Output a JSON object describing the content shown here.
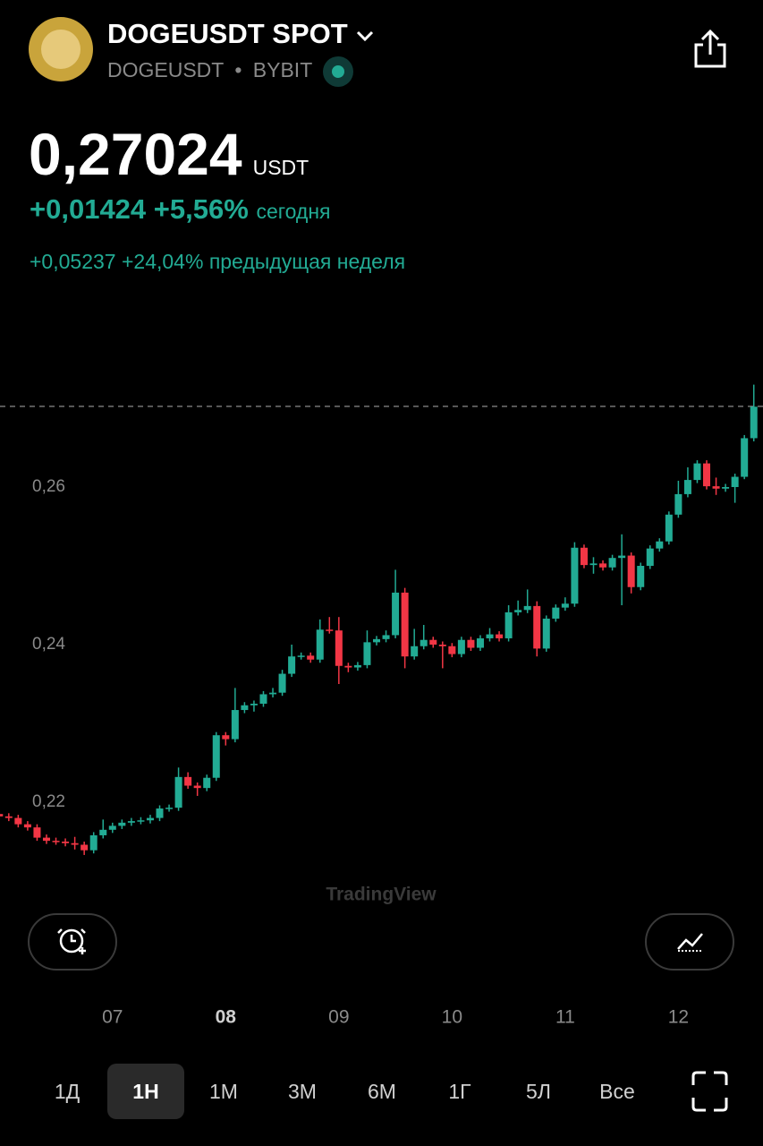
{
  "header": {
    "title": "DOGEUSDT SPOT",
    "symbol": "DOGEUSDT",
    "separator": "•",
    "exchange": "BYBIT",
    "price": "0,27024",
    "currency": "USDT",
    "change_today": "+0,01424",
    "change_today_pct": "+5,56%",
    "today_label": "сегодня",
    "change_week": "+0,05237",
    "change_week_pct": "+24,04%",
    "week_label": "предыдущая неделя"
  },
  "watermark": "TradingView",
  "ranges": [
    "1Д",
    "1Н",
    "1М",
    "3М",
    "6М",
    "1Г",
    "5Л",
    "Все"
  ],
  "selected_range": 1,
  "chart_data": {
    "type": "candlestick",
    "up_color": "#22ab94",
    "down_color": "#f23645",
    "grid": false,
    "ylim": [
      0.21,
      0.285
    ],
    "yticks": [
      {
        "value": 0.22,
        "label": "0,22"
      },
      {
        "value": 0.24,
        "label": "0,24"
      },
      {
        "value": 0.26,
        "label": "0,26"
      }
    ],
    "last_price": 0.27024,
    "categories": [
      null,
      null,
      null,
      null,
      null,
      null,
      null,
      null,
      null,
      null,
      null,
      null,
      "07",
      null,
      null,
      null,
      null,
      null,
      null,
      null,
      null,
      null,
      null,
      null,
      "08",
      null,
      null,
      null,
      null,
      null,
      null,
      null,
      null,
      null,
      null,
      null,
      "09",
      null,
      null,
      null,
      null,
      null,
      null,
      null,
      null,
      null,
      null,
      null,
      "10",
      null,
      null,
      null,
      null,
      null,
      null,
      null,
      null,
      null,
      null,
      null,
      "11",
      null,
      null,
      null,
      null,
      null,
      null,
      null,
      null,
      null,
      null,
      null,
      "12",
      null,
      null,
      null,
      null,
      null,
      null,
      null,
      null
    ],
    "open": [
      0.2185,
      0.2182,
      0.218,
      0.2172,
      0.2168,
      0.2155,
      0.2151,
      0.215,
      0.2148,
      0.2146,
      0.2139,
      0.2158,
      0.2165,
      0.217,
      0.2174,
      0.2176,
      0.2177,
      0.218,
      0.2192,
      0.2193,
      0.2232,
      0.2221,
      0.2218,
      0.2231,
      0.2285,
      0.228,
      0.2317,
      0.2323,
      0.2325,
      0.2337,
      0.2339,
      0.2363,
      0.2385,
      0.2386,
      0.2381,
      0.2419,
      0.2418,
      0.2373,
      0.2371,
      0.2374,
      0.2403,
      0.2407,
      0.2412,
      0.2466,
      0.2385,
      0.2398,
      0.2406,
      0.24,
      0.2398,
      0.2388,
      0.2406,
      0.2396,
      0.2408,
      0.2413,
      0.2408,
      0.2441,
      0.2444,
      0.2449,
      0.2395,
      0.2433,
      0.2447,
      0.2452,
      0.2523,
      0.2501,
      0.2503,
      0.2498,
      0.251,
      0.2513,
      0.2473,
      0.25,
      0.2522,
      0.2531,
      0.2565,
      0.2591,
      0.2609,
      0.263,
      0.2601,
      0.2598,
      0.26,
      0.2613,
      0.2662
    ],
    "high": [
      0.2189,
      0.2186,
      0.2184,
      0.2176,
      0.2172,
      0.2159,
      0.2155,
      0.2154,
      0.2156,
      0.215,
      0.2162,
      0.2178,
      0.2174,
      0.2178,
      0.218,
      0.2181,
      0.2184,
      0.2196,
      0.2197,
      0.2244,
      0.2238,
      0.2225,
      0.2235,
      0.2289,
      0.2289,
      0.2345,
      0.2327,
      0.2329,
      0.2341,
      0.2345,
      0.2368,
      0.24,
      0.239,
      0.239,
      0.2432,
      0.2435,
      0.2435,
      0.2377,
      0.2378,
      0.2418,
      0.2411,
      0.2418,
      0.2495,
      0.2472,
      0.242,
      0.2425,
      0.241,
      0.2404,
      0.2402,
      0.241,
      0.241,
      0.2412,
      0.2421,
      0.2417,
      0.245,
      0.2456,
      0.247,
      0.2455,
      0.2437,
      0.2451,
      0.246,
      0.253,
      0.2527,
      0.2511,
      0.2507,
      0.2514,
      0.254,
      0.2517,
      0.2504,
      0.2526,
      0.2535,
      0.2569,
      0.2608,
      0.2625,
      0.2634,
      0.2634,
      0.2612,
      0.2604,
      0.2617,
      0.2666,
      0.273
    ],
    "low": [
      0.2178,
      0.2176,
      0.2168,
      0.2164,
      0.2151,
      0.2147,
      0.2146,
      0.2144,
      0.214,
      0.2133,
      0.2135,
      0.2154,
      0.2161,
      0.2166,
      0.217,
      0.2172,
      0.2173,
      0.2176,
      0.2188,
      0.2189,
      0.2217,
      0.2208,
      0.2214,
      0.2227,
      0.2272,
      0.2276,
      0.2313,
      0.2315,
      0.2321,
      0.2333,
      0.2335,
      0.2359,
      0.2381,
      0.2377,
      0.2377,
      0.2414,
      0.235,
      0.2365,
      0.2367,
      0.237,
      0.2399,
      0.2403,
      0.2408,
      0.237,
      0.2381,
      0.2394,
      0.2396,
      0.237,
      0.2384,
      0.2384,
      0.2392,
      0.2392,
      0.2404,
      0.2404,
      0.2404,
      0.2437,
      0.244,
      0.2385,
      0.2391,
      0.2429,
      0.2443,
      0.2448,
      0.2497,
      0.249,
      0.2494,
      0.2494,
      0.245,
      0.2465,
      0.2469,
      0.2496,
      0.2518,
      0.2527,
      0.2561,
      0.2587,
      0.2605,
      0.2597,
      0.259,
      0.2594,
      0.258,
      0.261,
      0.2658
    ],
    "close": [
      0.2182,
      0.218,
      0.2172,
      0.2168,
      0.2155,
      0.2151,
      0.215,
      0.2148,
      0.2146,
      0.2139,
      0.2158,
      0.2165,
      0.217,
      0.2174,
      0.2176,
      0.2177,
      0.218,
      0.2192,
      0.2193,
      0.2232,
      0.2221,
      0.2218,
      0.2231,
      0.2285,
      0.228,
      0.2317,
      0.2323,
      0.2325,
      0.2337,
      0.2339,
      0.2363,
      0.2385,
      0.2386,
      0.2381,
      0.2419,
      0.2418,
      0.2373,
      0.2371,
      0.2374,
      0.2403,
      0.2407,
      0.2412,
      0.2466,
      0.2385,
      0.2398,
      0.2406,
      0.24,
      0.2398,
      0.2388,
      0.2406,
      0.2396,
      0.2408,
      0.2413,
      0.2408,
      0.2441,
      0.2444,
      0.2449,
      0.2395,
      0.2433,
      0.2447,
      0.2452,
      0.2523,
      0.2501,
      0.2503,
      0.2498,
      0.251,
      0.2513,
      0.2473,
      0.25,
      0.2522,
      0.2531,
      0.2565,
      0.2591,
      0.2609,
      0.263,
      0.2601,
      0.2598,
      0.26,
      0.2613,
      0.2662,
      0.2702
    ]
  }
}
